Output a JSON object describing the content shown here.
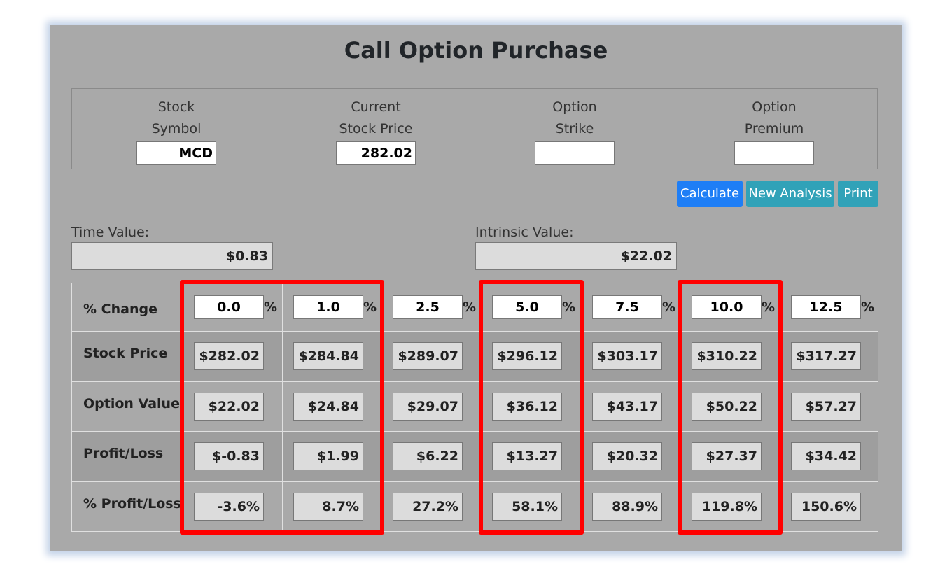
{
  "title": "Call Option Purchase",
  "fields": [
    {
      "label1": "Stock",
      "label2": "Symbol",
      "value": "MCD"
    },
    {
      "label1": "Current",
      "label2": "Stock Price",
      "value": "282.02"
    },
    {
      "label1": "Option",
      "label2": "Strike",
      "value": ""
    },
    {
      "label1": "Option",
      "label2": "Premium",
      "value": ""
    }
  ],
  "buttons": {
    "calculate": "Calculate",
    "new_analysis": "New Analysis",
    "print": "Print"
  },
  "time_value": {
    "label": "Time Value:",
    "value": "$0.83"
  },
  "intrinsic_value": {
    "label": "Intrinsic Value:",
    "value": "$22.02"
  },
  "table": {
    "pct_label": "% Change",
    "pct_sign": "%",
    "pct_changes": [
      "0.0",
      "1.0",
      "2.5",
      "5.0",
      "7.5",
      "10.0",
      "12.5"
    ],
    "rows": [
      {
        "label": "Stock Price",
        "values": [
          "$282.02",
          "$284.84",
          "$289.07",
          "$296.12",
          "$303.17",
          "$310.22",
          "$317.27"
        ]
      },
      {
        "label": "Option Value",
        "values": [
          "$22.02",
          "$24.84",
          "$29.07",
          "$36.12",
          "$43.17",
          "$50.22",
          "$57.27"
        ]
      },
      {
        "label": "Profit/Loss",
        "values": [
          "$-0.83",
          "$1.99",
          "$6.22",
          "$13.27",
          "$20.32",
          "$27.37",
          "$34.42"
        ]
      },
      {
        "label": "% Profit/Loss",
        "values": [
          "-3.6%",
          "8.7%",
          "27.2%",
          "58.1%",
          "88.9%",
          "119.8%",
          "150.6%"
        ]
      }
    ]
  },
  "colors": {
    "highlight": "#ff0000",
    "calculate_button": "#1e7ef6",
    "secondary_button": "#31a2b8"
  }
}
